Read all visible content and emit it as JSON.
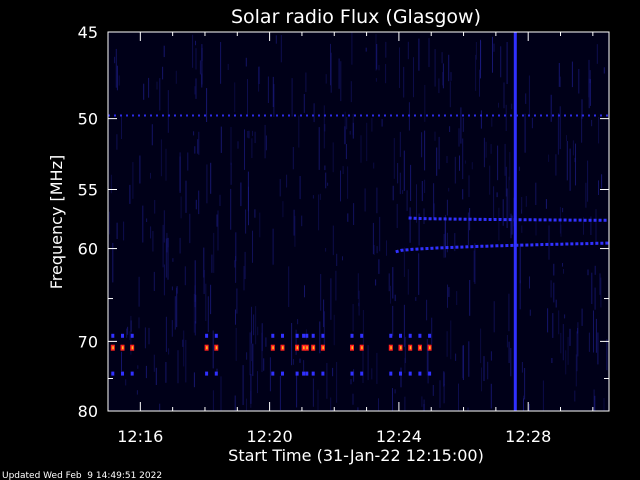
{
  "chart_data": {
    "type": "heatmap",
    "title": "Solar radio Flux (Glasgow)",
    "ylabel": "Frequency [MHz]",
    "xlabel": "Start Time (31-Jan-22 12:15:00)",
    "y_scale": "reciprocal",
    "ylim": [
      45,
      80
    ],
    "y_ticks_major": [
      45,
      50,
      55,
      60,
      70,
      80
    ],
    "y_ticks_minor": [
      65,
      75
    ],
    "x_unit": "minutes after 12:15:00",
    "xlim": [
      0,
      15.5
    ],
    "x_ticks": [
      {
        "value": 1,
        "label": "12:16"
      },
      {
        "value": 5,
        "label": "12:20"
      },
      {
        "value": 9,
        "label": "12:24"
      },
      {
        "value": 13,
        "label": "12:28"
      }
    ],
    "x_minor_ticks": [
      0,
      2,
      3,
      4,
      6,
      7,
      8,
      10,
      11,
      12,
      14,
      15
    ],
    "background_color": "#000018",
    "noise_color": "#1a1a80",
    "signal_color": "#3030ff",
    "hot_color": "#ff2020",
    "hot_core_color": "#ffc020",
    "persistent_lines_mhz": [
      49.8
    ],
    "drifting_bands": [
      {
        "start_min": 9.3,
        "end_min": 15.5,
        "freq_start_mhz": 57.3,
        "freq_end_mhz": 57.5
      },
      {
        "start_min": 8.9,
        "end_min": 15.5,
        "freq_start_mhz": 60.3,
        "freq_end_mhz": 59.5
      }
    ],
    "burst_freqs_mhz": [
      69.3,
      70.8,
      74.3
    ],
    "burst_times_min": [
      0.15,
      0.45,
      0.75,
      3.05,
      3.35,
      5.1,
      5.4,
      5.85,
      6.05,
      6.15,
      6.35,
      6.65,
      7.55,
      7.85,
      8.75,
      9.05,
      9.35,
      9.65,
      9.95
    ],
    "vertical_event_min": 12.6
  },
  "footer": {
    "updated": "Updated Wed Feb  9 14:49:51 2022"
  }
}
